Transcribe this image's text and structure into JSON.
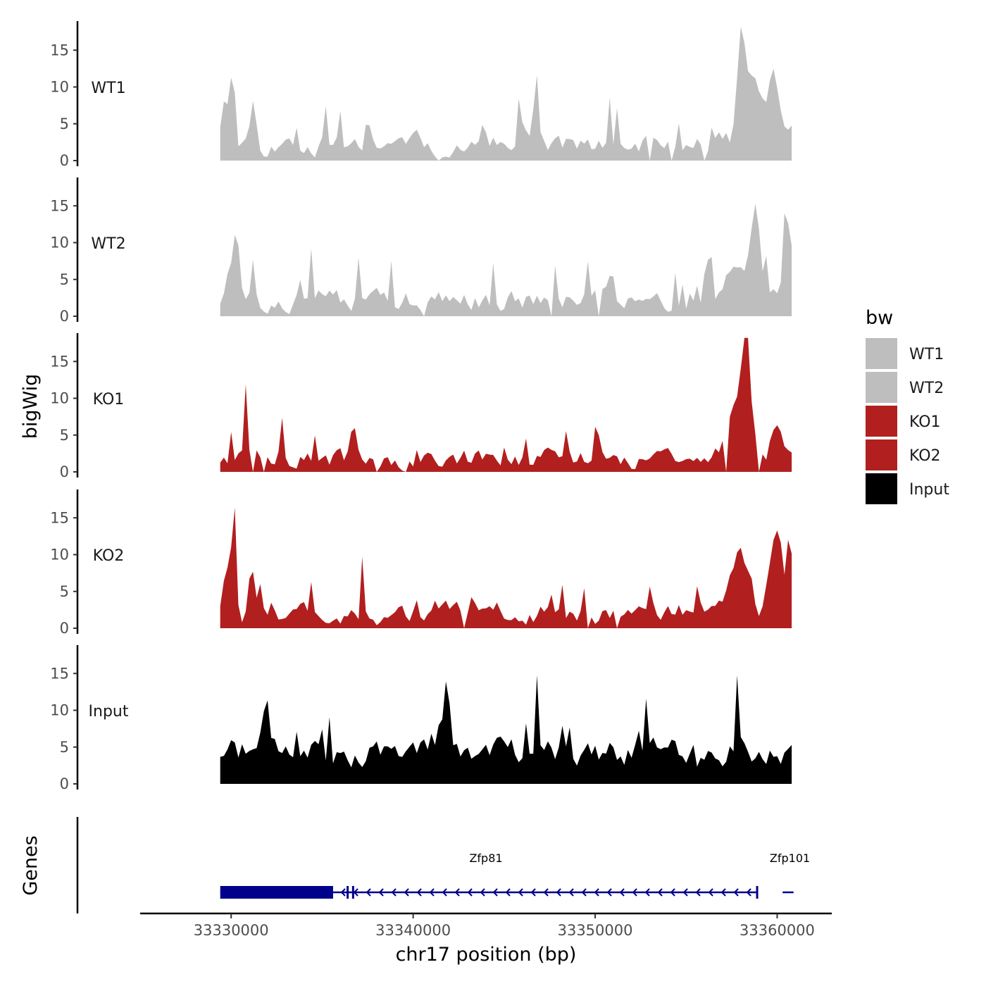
{
  "chart_data": {
    "type": "area",
    "y_axis_title": "bigWig",
    "genes_axis_title": "Genes",
    "x_axis_title": "chr17 position (bp)",
    "xlim": [
      33325000,
      33363000
    ],
    "x_ticks": [
      33330000,
      33340000,
      33350000,
      33360000
    ],
    "x_tick_labels": [
      "33330000",
      "33340000",
      "33350000",
      "33360000"
    ],
    "ylim": [
      0,
      18.5
    ],
    "y_ticks": [
      0,
      5,
      10,
      15
    ],
    "y_tick_labels": [
      "0",
      "5",
      "10",
      "15"
    ],
    "data_range": [
      33329400,
      33360800
    ],
    "bin_size": 200,
    "legend": {
      "title": "bw",
      "entries": [
        {
          "label": "WT1",
          "color": "#bebebe"
        },
        {
          "label": "WT2",
          "color": "#bebebe"
        },
        {
          "label": "KO1",
          "color": "#b21f1f"
        },
        {
          "label": "KO2",
          "color": "#b21f1f"
        },
        {
          "label": "Input",
          "color": "#000000"
        }
      ]
    },
    "series": [
      {
        "name": "WT1",
        "color": "#bebebe",
        "seed": 11,
        "base": 2.2,
        "noise": 2.6,
        "spike_prob": 0.11,
        "spike_max": 6,
        "gap_prob": 0.025,
        "peaks": [
          {
            "x": 33330100,
            "h": 15.5,
            "w": 120
          },
          {
            "x": 33329700,
            "h": 8,
            "w": 300
          },
          {
            "x": 33331200,
            "h": 7,
            "w": 200
          },
          {
            "x": 33337500,
            "h": 8.5,
            "w": 100
          },
          {
            "x": 33346800,
            "h": 7.5,
            "w": 120
          },
          {
            "x": 33358000,
            "h": 13.5,
            "w": 250
          },
          {
            "x": 33358600,
            "h": 8,
            "w": 700
          },
          {
            "x": 33359800,
            "h": 10,
            "w": 400
          }
        ]
      },
      {
        "name": "WT2",
        "color": "#bebebe",
        "seed": 23,
        "base": 2.2,
        "noise": 2.6,
        "spike_prob": 0.11,
        "spike_max": 6,
        "gap_prob": 0.025,
        "peaks": [
          {
            "x": 33330300,
            "h": 13,
            "w": 150
          },
          {
            "x": 33329900,
            "h": 5,
            "w": 250
          },
          {
            "x": 33331200,
            "h": 6.5,
            "w": 150
          },
          {
            "x": 33338800,
            "h": 6,
            "w": 120
          },
          {
            "x": 33356300,
            "h": 9.5,
            "w": 150
          },
          {
            "x": 33358800,
            "h": 12,
            "w": 400
          },
          {
            "x": 33360500,
            "h": 14,
            "w": 200
          },
          {
            "x": 33357800,
            "h": 6,
            "w": 600
          }
        ]
      },
      {
        "name": "KO1",
        "color": "#b21f1f",
        "seed": 37,
        "base": 1.8,
        "noise": 2.4,
        "spike_prob": 0.1,
        "spike_max": 5,
        "gap_prob": 0.025,
        "peaks": [
          {
            "x": 33330800,
            "h": 9.5,
            "w": 150
          },
          {
            "x": 33332800,
            "h": 5.5,
            "w": 120
          },
          {
            "x": 33336700,
            "h": 6,
            "w": 150
          },
          {
            "x": 33348400,
            "h": 5,
            "w": 150
          },
          {
            "x": 33358300,
            "h": 12,
            "w": 350
          },
          {
            "x": 33357700,
            "h": 6,
            "w": 700
          },
          {
            "x": 33360000,
            "h": 6,
            "w": 400
          }
        ]
      },
      {
        "name": "KO2",
        "color": "#b21f1f",
        "seed": 53,
        "base": 1.8,
        "noise": 2.4,
        "spike_prob": 0.1,
        "spike_max": 5,
        "gap_prob": 0.025,
        "peaks": [
          {
            "x": 33330200,
            "h": 14,
            "w": 150
          },
          {
            "x": 33329800,
            "h": 7,
            "w": 300
          },
          {
            "x": 33331100,
            "h": 6,
            "w": 300
          },
          {
            "x": 33337200,
            "h": 9,
            "w": 100
          },
          {
            "x": 33358000,
            "h": 8,
            "w": 700
          },
          {
            "x": 33360000,
            "h": 11,
            "w": 500
          },
          {
            "x": 33360700,
            "h": 12,
            "w": 150
          }
        ]
      },
      {
        "name": "Input",
        "color": "#000000",
        "seed": 71,
        "base": 4.4,
        "noise": 3.4,
        "spike_prob": 0.12,
        "spike_max": 6,
        "gap_prob": 0,
        "peaks": [
          {
            "x": 33341800,
            "h": 8,
            "w": 250
          },
          {
            "x": 33346800,
            "h": 6,
            "w": 150
          },
          {
            "x": 33352800,
            "h": 7,
            "w": 100
          },
          {
            "x": 33357800,
            "h": 10,
            "w": 120
          },
          {
            "x": 33331800,
            "h": 5,
            "w": 150
          }
        ]
      }
    ],
    "genes": [
      {
        "name": "Zfp81",
        "strand": "-",
        "start": 33329400,
        "end": 33358900,
        "thick_start": 33329400,
        "thick_end": 33335600,
        "exons": [
          33336400,
          33336700
        ],
        "label_x": 33344000
      },
      {
        "name": "Zfp101",
        "strand": "-",
        "start": 33360300,
        "end": 33360900,
        "thick_start": 33360300,
        "thick_end": 33360300,
        "exons": [],
        "label_x": 33360700
      }
    ]
  }
}
